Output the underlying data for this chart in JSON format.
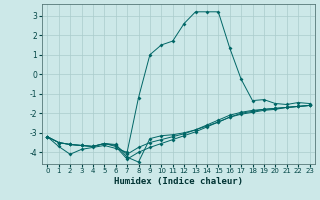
{
  "title": "",
  "xlabel": "Humidex (Indice chaleur)",
  "bg_color": "#cce8e8",
  "grid_color": "#aacccc",
  "line_color": "#006666",
  "xlim": [
    -0.5,
    23.5
  ],
  "ylim": [
    -4.6,
    3.6
  ],
  "xticks": [
    0,
    1,
    2,
    3,
    4,
    5,
    6,
    7,
    8,
    9,
    10,
    11,
    12,
    13,
    14,
    15,
    16,
    17,
    18,
    19,
    20,
    21,
    22,
    23
  ],
  "yticks": [
    -4,
    -3,
    -2,
    -1,
    0,
    1,
    2,
    3
  ],
  "series1": [
    [
      0,
      -3.2
    ],
    [
      1,
      -3.7
    ],
    [
      2,
      -4.1
    ],
    [
      3,
      -3.85
    ],
    [
      4,
      -3.75
    ],
    [
      5,
      -3.65
    ],
    [
      6,
      -3.8
    ],
    [
      7,
      -4.0
    ],
    [
      8,
      -1.2
    ],
    [
      9,
      1.0
    ],
    [
      10,
      1.5
    ],
    [
      11,
      1.7
    ],
    [
      12,
      2.6
    ],
    [
      13,
      3.2
    ],
    [
      14,
      3.2
    ],
    [
      15,
      3.2
    ],
    [
      16,
      1.35
    ],
    [
      17,
      -0.25
    ],
    [
      18,
      -1.35
    ],
    [
      19,
      -1.3
    ],
    [
      20,
      -1.5
    ],
    [
      21,
      -1.55
    ],
    [
      22,
      -1.45
    ],
    [
      23,
      -1.5
    ]
  ],
  "series2": [
    [
      0,
      -3.2
    ],
    [
      1,
      -3.5
    ],
    [
      2,
      -3.6
    ],
    [
      3,
      -3.65
    ],
    [
      4,
      -3.7
    ],
    [
      5,
      -3.55
    ],
    [
      6,
      -3.6
    ],
    [
      7,
      -4.25
    ],
    [
      8,
      -4.5
    ],
    [
      9,
      -3.3
    ],
    [
      10,
      -3.15
    ],
    [
      11,
      -3.1
    ],
    [
      12,
      -3.0
    ],
    [
      13,
      -2.85
    ],
    [
      14,
      -2.65
    ],
    [
      15,
      -2.45
    ],
    [
      16,
      -2.2
    ],
    [
      17,
      -2.05
    ],
    [
      18,
      -1.95
    ],
    [
      19,
      -1.85
    ],
    [
      20,
      -1.8
    ],
    [
      21,
      -1.7
    ],
    [
      22,
      -1.65
    ],
    [
      23,
      -1.6
    ]
  ],
  "series3": [
    [
      0,
      -3.2
    ],
    [
      1,
      -3.5
    ],
    [
      2,
      -3.6
    ],
    [
      3,
      -3.65
    ],
    [
      4,
      -3.7
    ],
    [
      5,
      -3.55
    ],
    [
      6,
      -3.65
    ],
    [
      7,
      -4.1
    ],
    [
      8,
      -3.75
    ],
    [
      9,
      -3.5
    ],
    [
      10,
      -3.35
    ],
    [
      11,
      -3.2
    ],
    [
      12,
      -3.05
    ],
    [
      13,
      -2.85
    ],
    [
      14,
      -2.6
    ],
    [
      15,
      -2.35
    ],
    [
      16,
      -2.1
    ],
    [
      17,
      -1.95
    ],
    [
      18,
      -1.85
    ],
    [
      19,
      -1.8
    ],
    [
      20,
      -1.75
    ],
    [
      21,
      -1.7
    ],
    [
      22,
      -1.65
    ],
    [
      23,
      -1.6
    ]
  ],
  "series4": [
    [
      0,
      -3.2
    ],
    [
      1,
      -3.5
    ],
    [
      2,
      -3.6
    ],
    [
      3,
      -3.65
    ],
    [
      4,
      -3.7
    ],
    [
      5,
      -3.55
    ],
    [
      6,
      -3.7
    ],
    [
      7,
      -4.35
    ],
    [
      8,
      -4.0
    ],
    [
      9,
      -3.75
    ],
    [
      10,
      -3.55
    ],
    [
      11,
      -3.35
    ],
    [
      12,
      -3.15
    ],
    [
      13,
      -2.95
    ],
    [
      14,
      -2.7
    ],
    [
      15,
      -2.45
    ],
    [
      16,
      -2.2
    ],
    [
      17,
      -2.0
    ],
    [
      18,
      -1.9
    ],
    [
      19,
      -1.8
    ],
    [
      20,
      -1.75
    ],
    [
      21,
      -1.7
    ],
    [
      22,
      -1.65
    ],
    [
      23,
      -1.6
    ]
  ]
}
